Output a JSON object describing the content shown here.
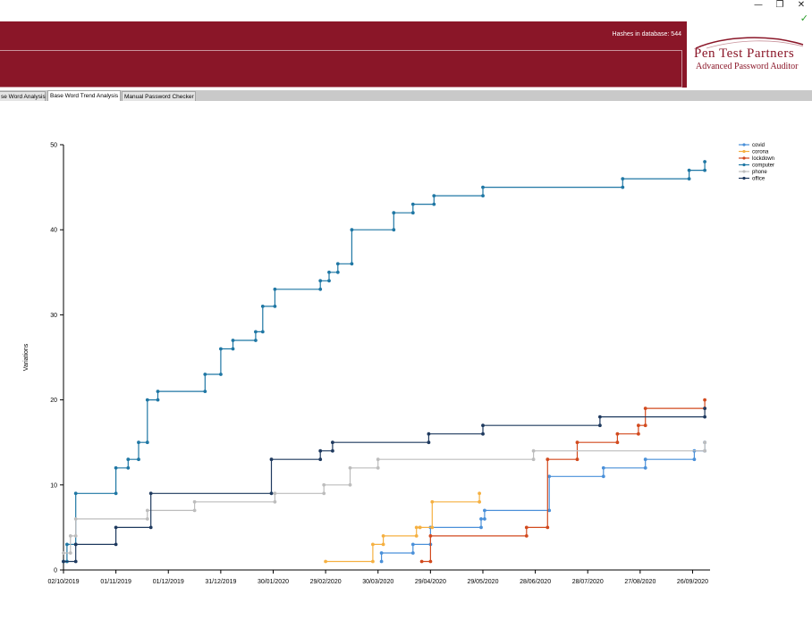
{
  "window": {
    "minimize": "—",
    "restore": "❐",
    "close": "✕",
    "status_check": "✓"
  },
  "header": {
    "hashes_label": "Hashes in database: 544"
  },
  "logo": {
    "name": "Pen Test Partners",
    "product": "Advanced Password Auditor"
  },
  "tabs": [
    {
      "label": "Base Word Analysis",
      "visible_label": "se Word Analysis",
      "active": false
    },
    {
      "label": "Base Word Trend Analysis",
      "active": true
    },
    {
      "label": "Manual Password Checker",
      "active": false
    }
  ],
  "chart_data": {
    "type": "line",
    "ylabel": "Variations",
    "xlabel": "",
    "ylim": [
      0,
      50
    ],
    "yticks": [
      0,
      10,
      20,
      30,
      40,
      50
    ],
    "xlim": [
      "2019-10-02",
      "2020-10-06"
    ],
    "xticks": [
      "02/10/2019",
      "01/11/2019",
      "01/12/2019",
      "31/12/2019",
      "30/01/2020",
      "29/02/2020",
      "30/03/2020",
      "29/04/2020",
      "29/05/2020",
      "28/06/2020",
      "28/07/2020",
      "27/08/2020",
      "26/09/2020"
    ],
    "xtick_dates": [
      "2019-10-02",
      "2019-11-01",
      "2019-12-01",
      "2019-12-31",
      "2020-01-30",
      "2020-02-29",
      "2020-03-30",
      "2020-04-29",
      "2020-05-29",
      "2020-06-28",
      "2020-07-28",
      "2020-08-27",
      "2020-09-26"
    ],
    "legend_position": "top-right",
    "step": true,
    "series": [
      {
        "name": "covid",
        "color": "#4a90d9",
        "points": [
          [
            "2020-04-01",
            1
          ],
          [
            "2020-04-01",
            2
          ],
          [
            "2020-04-19",
            2
          ],
          [
            "2020-04-19",
            3
          ],
          [
            "2020-04-29",
            3
          ],
          [
            "2020-04-29",
            5
          ],
          [
            "2020-05-28",
            5
          ],
          [
            "2020-05-28",
            6
          ],
          [
            "2020-05-30",
            6
          ],
          [
            "2020-05-30",
            7
          ],
          [
            "2020-07-06",
            7
          ],
          [
            "2020-07-06",
            11
          ],
          [
            "2020-08-06",
            11
          ],
          [
            "2020-08-06",
            12
          ],
          [
            "2020-08-30",
            12
          ],
          [
            "2020-08-30",
            13
          ],
          [
            "2020-09-27",
            13
          ],
          [
            "2020-09-27",
            14
          ],
          [
            "2020-10-03",
            14
          ],
          [
            "2020-10-03",
            15
          ]
        ]
      },
      {
        "name": "corona",
        "color": "#f5b041",
        "points": [
          [
            "2020-02-29",
            1
          ],
          [
            "2020-03-27",
            1
          ],
          [
            "2020-03-27",
            3
          ],
          [
            "2020-04-02",
            3
          ],
          [
            "2020-04-02",
            4
          ],
          [
            "2020-04-21",
            4
          ],
          [
            "2020-04-21",
            5
          ],
          [
            "2020-04-23",
            5
          ],
          [
            "2020-04-23",
            5
          ],
          [
            "2020-04-30",
            5
          ],
          [
            "2020-04-30",
            8
          ],
          [
            "2020-05-27",
            8
          ],
          [
            "2020-05-27",
            9
          ]
        ]
      },
      {
        "name": "lockdown",
        "color": "#d24a1e",
        "points": [
          [
            "2020-04-24",
            1
          ],
          [
            "2020-04-29",
            1
          ],
          [
            "2020-04-29",
            4
          ],
          [
            "2020-06-23",
            4
          ],
          [
            "2020-06-23",
            5
          ],
          [
            "2020-07-05",
            5
          ],
          [
            "2020-07-05",
            13
          ],
          [
            "2020-07-22",
            13
          ],
          [
            "2020-07-22",
            15
          ],
          [
            "2020-08-14",
            15
          ],
          [
            "2020-08-14",
            16
          ],
          [
            "2020-08-26",
            16
          ],
          [
            "2020-08-26",
            17
          ],
          [
            "2020-08-30",
            17
          ],
          [
            "2020-08-30",
            19
          ],
          [
            "2020-10-03",
            19
          ],
          [
            "2020-10-03",
            20
          ]
        ]
      },
      {
        "name": "computer",
        "color": "#1f77a4",
        "points": [
          [
            "2019-10-02",
            1
          ],
          [
            "2019-10-04",
            1
          ],
          [
            "2019-10-04",
            3
          ],
          [
            "2019-10-09",
            3
          ],
          [
            "2019-10-09",
            9
          ],
          [
            "2019-11-01",
            9
          ],
          [
            "2019-11-01",
            12
          ],
          [
            "2019-11-08",
            12
          ],
          [
            "2019-11-08",
            13
          ],
          [
            "2019-11-14",
            13
          ],
          [
            "2019-11-14",
            15
          ],
          [
            "2019-11-19",
            15
          ],
          [
            "2019-11-19",
            20
          ],
          [
            "2019-11-25",
            20
          ],
          [
            "2019-11-25",
            21
          ],
          [
            "2019-12-22",
            21
          ],
          [
            "2019-12-22",
            23
          ],
          [
            "2019-12-31",
            23
          ],
          [
            "2019-12-31",
            26
          ],
          [
            "2020-01-07",
            26
          ],
          [
            "2020-01-07",
            27
          ],
          [
            "2020-01-20",
            27
          ],
          [
            "2020-01-20",
            28
          ],
          [
            "2020-01-24",
            28
          ],
          [
            "2020-01-24",
            31
          ],
          [
            "2020-01-31",
            31
          ],
          [
            "2020-01-31",
            33
          ],
          [
            "2020-02-26",
            33
          ],
          [
            "2020-02-26",
            34
          ],
          [
            "2020-03-02",
            34
          ],
          [
            "2020-03-02",
            35
          ],
          [
            "2020-03-07",
            35
          ],
          [
            "2020-03-07",
            36
          ],
          [
            "2020-03-15",
            36
          ],
          [
            "2020-03-15",
            40
          ],
          [
            "2020-04-08",
            40
          ],
          [
            "2020-04-08",
            42
          ],
          [
            "2020-04-19",
            42
          ],
          [
            "2020-04-19",
            43
          ],
          [
            "2020-05-01",
            43
          ],
          [
            "2020-05-01",
            44
          ],
          [
            "2020-05-29",
            44
          ],
          [
            "2020-05-29",
            45
          ],
          [
            "2020-08-17",
            45
          ],
          [
            "2020-08-17",
            46
          ],
          [
            "2020-09-24",
            46
          ],
          [
            "2020-09-24",
            47
          ],
          [
            "2020-10-03",
            47
          ],
          [
            "2020-10-03",
            48
          ]
        ]
      },
      {
        "name": "phone",
        "color": "#bdbdbd",
        "points": [
          [
            "2019-10-02",
            2
          ],
          [
            "2019-10-06",
            2
          ],
          [
            "2019-10-06",
            4
          ],
          [
            "2019-10-09",
            4
          ],
          [
            "2019-10-09",
            6
          ],
          [
            "2019-11-19",
            6
          ],
          [
            "2019-11-19",
            7
          ],
          [
            "2019-12-16",
            7
          ],
          [
            "2019-12-16",
            8
          ],
          [
            "2020-01-31",
            8
          ],
          [
            "2020-01-31",
            9
          ],
          [
            "2020-02-28",
            9
          ],
          [
            "2020-02-28",
            10
          ],
          [
            "2020-03-14",
            10
          ],
          [
            "2020-03-14",
            12
          ],
          [
            "2020-03-30",
            12
          ],
          [
            "2020-03-30",
            13
          ],
          [
            "2020-06-27",
            13
          ],
          [
            "2020-06-27",
            14
          ],
          [
            "2020-10-03",
            14
          ],
          [
            "2020-10-03",
            15
          ]
        ]
      },
      {
        "name": "office",
        "color": "#1f3a5f",
        "points": [
          [
            "2019-10-02",
            1
          ],
          [
            "2019-10-09",
            1
          ],
          [
            "2019-10-09",
            3
          ],
          [
            "2019-11-01",
            3
          ],
          [
            "2019-11-01",
            5
          ],
          [
            "2019-11-21",
            5
          ],
          [
            "2019-11-21",
            9
          ],
          [
            "2020-01-29",
            9
          ],
          [
            "2020-01-29",
            13
          ],
          [
            "2020-02-26",
            13
          ],
          [
            "2020-02-26",
            14
          ],
          [
            "2020-03-04",
            14
          ],
          [
            "2020-03-04",
            15
          ],
          [
            "2020-04-28",
            15
          ],
          [
            "2020-04-28",
            16
          ],
          [
            "2020-05-29",
            16
          ],
          [
            "2020-05-29",
            17
          ],
          [
            "2020-08-04",
            17
          ],
          [
            "2020-08-04",
            18
          ],
          [
            "2020-10-03",
            18
          ],
          [
            "2020-10-03",
            19
          ]
        ]
      }
    ]
  }
}
